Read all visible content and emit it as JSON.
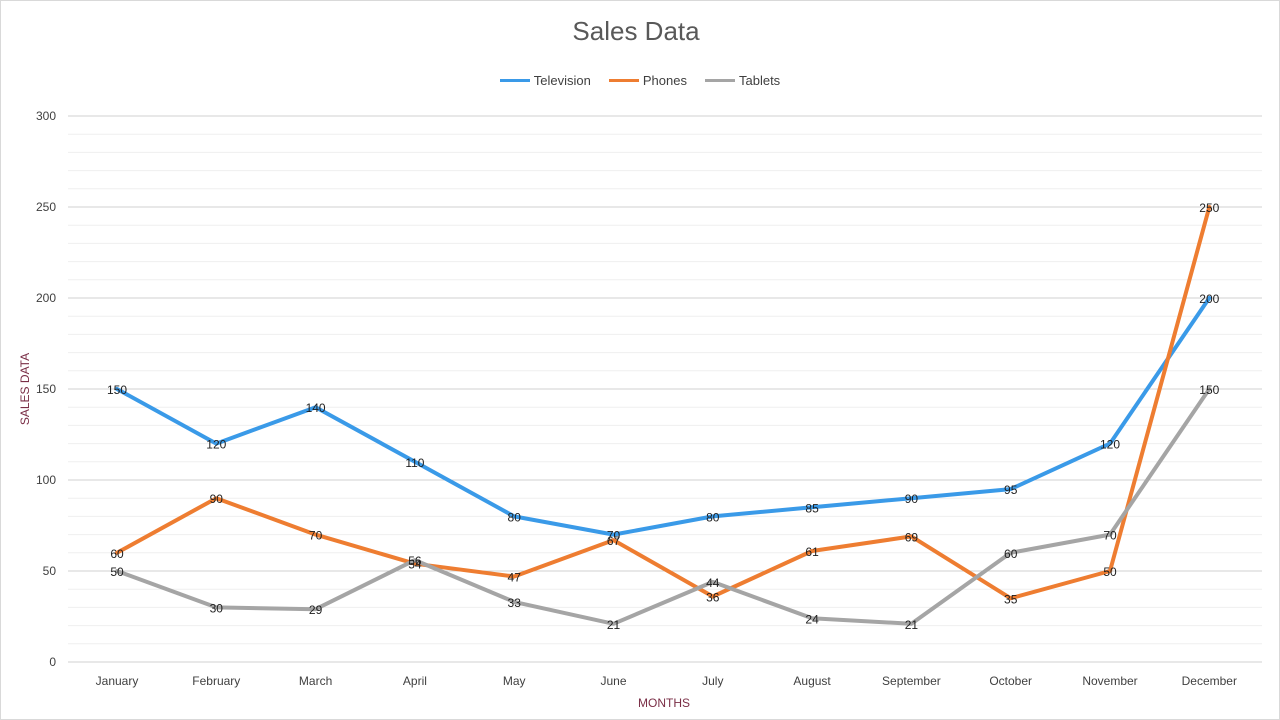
{
  "chart_data": {
    "type": "line",
    "title": "Sales Data",
    "xlabel": "MONTHS",
    "ylabel": "SALES DATA",
    "categories": [
      "January",
      "February",
      "March",
      "April",
      "May",
      "June",
      "July",
      "August",
      "September",
      "October",
      "November",
      "December"
    ],
    "ylim": [
      0,
      300
    ],
    "yticks": [
      0,
      50,
      100,
      150,
      200,
      250,
      300
    ],
    "grid": true,
    "legend_position": "top-center",
    "series": [
      {
        "name": "Television",
        "color": "#3a9ae8",
        "values": [
          150,
          120,
          140,
          110,
          80,
          70,
          80,
          85,
          90,
          95,
          120,
          200
        ]
      },
      {
        "name": "Phones",
        "color": "#ee7d31",
        "values": [
          60,
          90,
          70,
          54,
          47,
          67,
          36,
          61,
          69,
          35,
          50,
          250
        ]
      },
      {
        "name": "Tablets",
        "color": "#a5a5a5",
        "values": [
          50,
          30,
          29,
          56,
          33,
          21,
          44,
          24,
          21,
          60,
          70,
          150
        ]
      }
    ]
  }
}
